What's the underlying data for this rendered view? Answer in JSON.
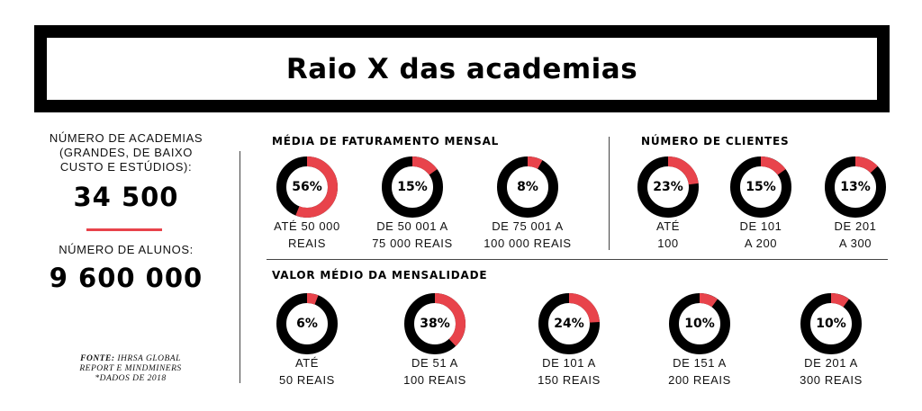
{
  "title": "Raio X das academias",
  "left": {
    "gyms_label": "NÚMERO DE ACADEMIAS\n(GRANDES, DE BAIXO\nCUSTO E ESTÚDIOS):",
    "gyms_value": "34 500",
    "students_label": "NÚMERO DE ALUNOS:",
    "students_value": "9 600 000",
    "source_label": "FONTE:",
    "source_text": " IHRSA GLOBAL",
    "source_text2": "REPORT E MINDMINERS",
    "source_note": "*DADOS DE 2018"
  },
  "colors": {
    "accent": "#e8434b",
    "ring": "#000000"
  },
  "chart_data": [
    {
      "type": "pie",
      "title": "MÉDIA DE FATURAMENTO MENSAL",
      "categories": [
        "ATÉ 50 000\nREAIS",
        "DE 50 001 A\n75 000 REAIS",
        "DE 75 001 A\n100 000 REAIS"
      ],
      "values": [
        56,
        15,
        8
      ],
      "labels": [
        "56%",
        "15%",
        "8%"
      ]
    },
    {
      "type": "pie",
      "title": "NÚMERO DE CLIENTES",
      "categories": [
        "ATÉ\n100",
        "DE 101\nA 200",
        "DE 201\nA 300"
      ],
      "values": [
        23,
        15,
        13
      ],
      "labels": [
        "23%",
        "15%",
        "13%"
      ]
    },
    {
      "type": "pie",
      "title": "VALOR MÉDIO DA MENSALIDADE",
      "categories": [
        "ATÉ\n50 REAIS",
        "DE 51 A\n100 REAIS",
        "DE 101 A\n150 REAIS",
        "DE 151 A\n200 REAIS",
        "DE 201 A\n300 REAIS"
      ],
      "values": [
        6,
        38,
        24,
        10,
        10
      ],
      "labels": [
        "6%",
        "38%",
        "24%",
        "10%",
        "10%"
      ]
    }
  ]
}
